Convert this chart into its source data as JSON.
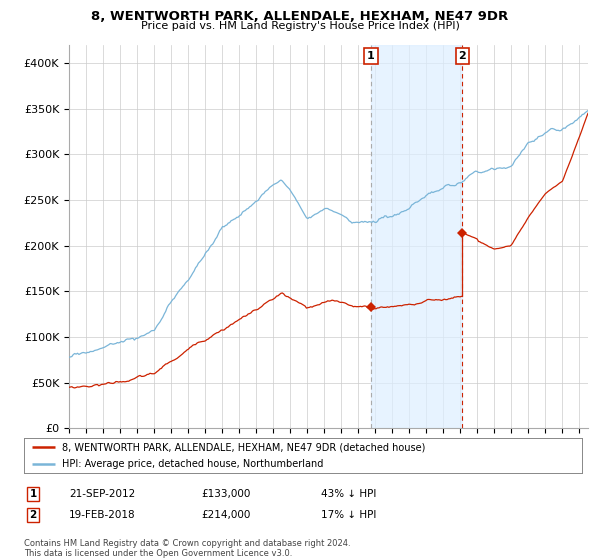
{
  "title": "8, WENTWORTH PARK, ALLENDALE, HEXHAM, NE47 9DR",
  "subtitle": "Price paid vs. HM Land Registry's House Price Index (HPI)",
  "ylim": [
    0,
    420000
  ],
  "yticks": [
    0,
    50000,
    100000,
    150000,
    200000,
    250000,
    300000,
    350000,
    400000
  ],
  "ytick_labels": [
    "£0",
    "£50K",
    "£100K",
    "£150K",
    "£200K",
    "£250K",
    "£300K",
    "£350K",
    "£400K"
  ],
  "sale1_date": "21-SEP-2012",
  "sale1_price": 133000,
  "sale1_hpi_pct": "43% ↓ HPI",
  "sale2_date": "19-FEB-2018",
  "sale2_price": 214000,
  "sale2_hpi_pct": "17% ↓ HPI",
  "legend_line1": "8, WENTWORTH PARK, ALLENDALE, HEXHAM, NE47 9DR (detached house)",
  "legend_line2": "HPI: Average price, detached house, Northumberland",
  "footer": "Contains HM Land Registry data © Crown copyright and database right 2024.\nThis data is licensed under the Open Government Licence v3.0.",
  "hpi_color": "#7ab5d8",
  "price_color": "#cc2200",
  "vline1_color": "#aaaaaa",
  "vline2_color": "#cc2200",
  "shade_color": "#ddeeff",
  "background_color": "#ffffff",
  "grid_color": "#cccccc",
  "sale1_x": 2012.75,
  "sale2_x": 2018.12,
  "xlim_left": 1995,
  "xlim_right": 2025.5
}
